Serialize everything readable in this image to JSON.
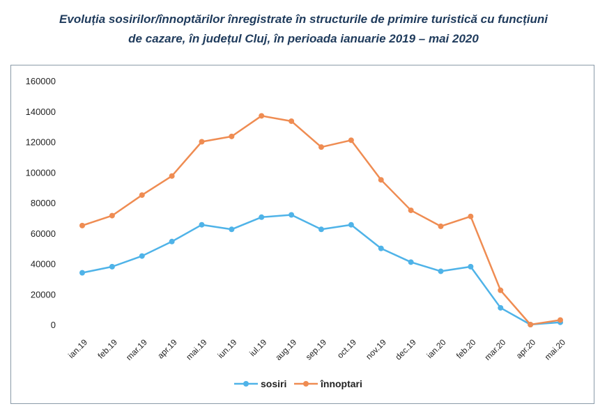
{
  "title_line1": "Evoluția sosirilor/înnoptărilor înregistrate în structurile de primire turistică cu funcțiuni",
  "title_line2": "de cazare, în județul Cluj, în perioada ianuarie 2019 – mai 2020",
  "chart_data": {
    "type": "line",
    "categories": [
      "ian.19",
      "feb.19",
      "mar.19",
      "apr.19",
      "mai.19",
      "iun.19",
      "iul.19",
      "aug.19",
      "sep.19",
      "oct.19",
      "nov.19",
      "dec.19",
      "ian.20",
      "feb.20",
      "mar.20",
      "apr.20",
      "mai.20"
    ],
    "series": [
      {
        "name": "sosiri",
        "color": "#4fb3e8",
        "values": [
          34000,
          38000,
          45000,
          54500,
          65500,
          62500,
          70500,
          72000,
          62500,
          65500,
          50000,
          41000,
          35000,
          38000,
          11000,
          0,
          1500
        ]
      },
      {
        "name": "înnoptari",
        "color": "#ef8c52",
        "values": [
          65000,
          71500,
          85000,
          97500,
          120000,
          123500,
          137000,
          133500,
          116500,
          121000,
          95000,
          75000,
          64500,
          71000,
          22500,
          0,
          3000
        ]
      }
    ],
    "ylim": [
      0,
      160000
    ],
    "yticks": [
      0,
      20000,
      40000,
      60000,
      80000,
      100000,
      120000,
      140000,
      160000
    ],
    "grid": false,
    "legend": "bottom-center"
  }
}
